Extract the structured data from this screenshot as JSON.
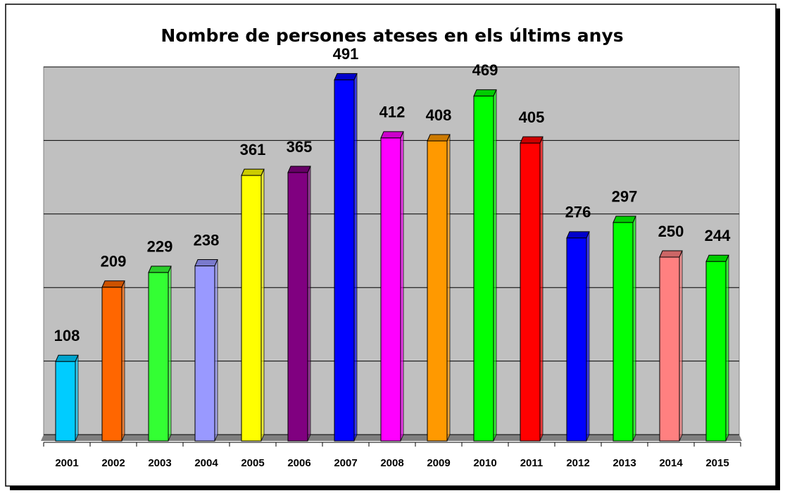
{
  "chart_data": {
    "type": "bar3d",
    "title": "Nombre de persones ateses en els últims anys",
    "categories": [
      "2001",
      "2002",
      "2003",
      "2004",
      "2005",
      "2006",
      "2007",
      "2008",
      "2009",
      "2010",
      "2011",
      "2012",
      "2013",
      "2014",
      "2015"
    ],
    "values": [
      108,
      209,
      229,
      238,
      361,
      365,
      491,
      412,
      408,
      469,
      405,
      276,
      297,
      250,
      244
    ],
    "colors": [
      "#00ccff",
      "#ff6600",
      "#33ff33",
      "#9999ff",
      "#ffff00",
      "#800080",
      "#0000ff",
      "#ff00ff",
      "#ff9900",
      "#00ff00",
      "#ff0000",
      "#0000ff",
      "#00ff00",
      "#ff8080",
      "#00ff00"
    ],
    "ylim": [
      0,
      500
    ],
    "yticks": [
      0,
      100,
      200,
      300,
      400,
      500
    ],
    "grid": true
  }
}
